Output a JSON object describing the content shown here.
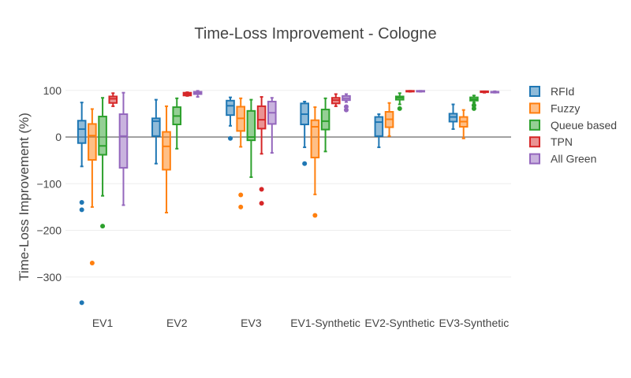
{
  "chart_data": {
    "type": "box",
    "title": "Time-Loss Improvement - Cologne",
    "xlabel": "",
    "ylabel": "Time-Loss Improvement (%)",
    "ylim": [
      -365,
      118
    ],
    "yticks": [
      100,
      0,
      -100,
      -200,
      -300
    ],
    "ytick_labels": [
      "100",
      "0",
      "−100",
      "−200",
      "−300"
    ],
    "grid": true,
    "legend_position": "right",
    "categories": [
      "EV1",
      "EV2",
      "EV3",
      "EV1-Synthetic",
      "EV2-Synthetic",
      "EV3-Synthetic"
    ],
    "series": [
      {
        "name": "RFId",
        "color": "#1f77b4",
        "boxes": [
          {
            "min": -63,
            "q1": -13,
            "median": 17,
            "q3": 35,
            "max": 74,
            "outliers": [
              -140,
              -156,
              -355
            ]
          },
          {
            "min": -57,
            "q1": 2,
            "median": 34,
            "q3": 40,
            "max": 80,
            "outliers": []
          },
          {
            "min": 24,
            "q1": 47,
            "median": 67,
            "q3": 78,
            "max": 85,
            "outliers": [
              -3
            ]
          },
          {
            "min": -22,
            "q1": 27,
            "median": 49,
            "q3": 72,
            "max": 76,
            "outliers": [
              -57
            ]
          },
          {
            "min": -22,
            "q1": 2,
            "median": 32,
            "q3": 43,
            "max": 49,
            "outliers": []
          },
          {
            "min": 17,
            "q1": 33,
            "median": 43,
            "q3": 50,
            "max": 70,
            "outliers": []
          }
        ]
      },
      {
        "name": "Fuzzy",
        "color": "#ff7f0e",
        "boxes": [
          {
            "min": -150,
            "q1": -49,
            "median": 3,
            "q3": 28,
            "max": 60,
            "outliers": [
              -270
            ]
          },
          {
            "min": -162,
            "q1": -70,
            "median": -20,
            "q3": 11,
            "max": 66,
            "outliers": []
          },
          {
            "min": -21,
            "q1": 13,
            "median": 40,
            "q3": 65,
            "max": 83,
            "outliers": [
              -124,
              -150
            ]
          },
          {
            "min": -123,
            "q1": -44,
            "median": 22,
            "q3": 36,
            "max": 64,
            "outliers": [
              -168
            ]
          },
          {
            "min": 2,
            "q1": 21,
            "median": 38,
            "q3": 54,
            "max": 73,
            "outliers": []
          },
          {
            "min": -3,
            "q1": 22,
            "median": 33,
            "q3": 43,
            "max": 58,
            "outliers": []
          }
        ]
      },
      {
        "name": "Queue based",
        "color": "#2ca02c",
        "boxes": [
          {
            "min": -126,
            "q1": -38,
            "median": -19,
            "q3": 44,
            "max": 84,
            "outliers": [
              -191
            ]
          },
          {
            "min": -25,
            "q1": 27,
            "median": 45,
            "q3": 64,
            "max": 83,
            "outliers": []
          },
          {
            "min": -86,
            "q1": -7,
            "median": 0,
            "q3": 56,
            "max": 80,
            "outliers": []
          },
          {
            "min": -31,
            "q1": 16,
            "median": 34,
            "q3": 59,
            "max": 83,
            "outliers": []
          },
          {
            "min": 70,
            "q1": 80,
            "median": 84,
            "q3": 87,
            "max": 94,
            "outliers": [
              61
            ]
          },
          {
            "min": 74,
            "q1": 78,
            "median": 81,
            "q3": 85,
            "max": 89,
            "outliers": [
              61,
              68
            ]
          }
        ]
      },
      {
        "name": "TPN",
        "color": "#d62728",
        "boxes": [
          {
            "min": 66,
            "q1": 73,
            "median": 82,
            "q3": 87,
            "max": 94,
            "outliers": []
          },
          {
            "min": 88,
            "q1": 89,
            "median": 92,
            "q3": 95,
            "max": 96,
            "outliers": []
          },
          {
            "min": -36,
            "q1": 18,
            "median": 37,
            "q3": 66,
            "max": 86,
            "outliers": [
              -112,
              -142
            ]
          },
          {
            "min": 66,
            "q1": 72,
            "median": 79,
            "q3": 84,
            "max": 92,
            "outliers": []
          },
          {
            "min": 97,
            "q1": 98,
            "median": 98,
            "q3": 99,
            "max": 99,
            "outliers": []
          },
          {
            "min": 95,
            "q1": 96,
            "median": 97,
            "q3": 98,
            "max": 98,
            "outliers": []
          }
        ]
      },
      {
        "name": "All Green",
        "color": "#9467bd",
        "boxes": [
          {
            "min": -146,
            "q1": -66,
            "median": 2,
            "q3": 49,
            "max": 95,
            "outliers": []
          },
          {
            "min": 86,
            "q1": 92,
            "median": 94,
            "q3": 97,
            "max": 99,
            "outliers": []
          },
          {
            "min": -34,
            "q1": 28,
            "median": 52,
            "q3": 76,
            "max": 84,
            "outliers": []
          },
          {
            "min": 75,
            "q1": 79,
            "median": 83,
            "q3": 88,
            "max": 92,
            "outliers": [
              58,
              65
            ]
          },
          {
            "min": 97,
            "q1": 98,
            "median": 98,
            "q3": 99,
            "max": 99,
            "outliers": []
          },
          {
            "min": 95,
            "q1": 96,
            "median": 97,
            "q3": 97,
            "max": 98,
            "outliers": []
          }
        ]
      }
    ]
  }
}
